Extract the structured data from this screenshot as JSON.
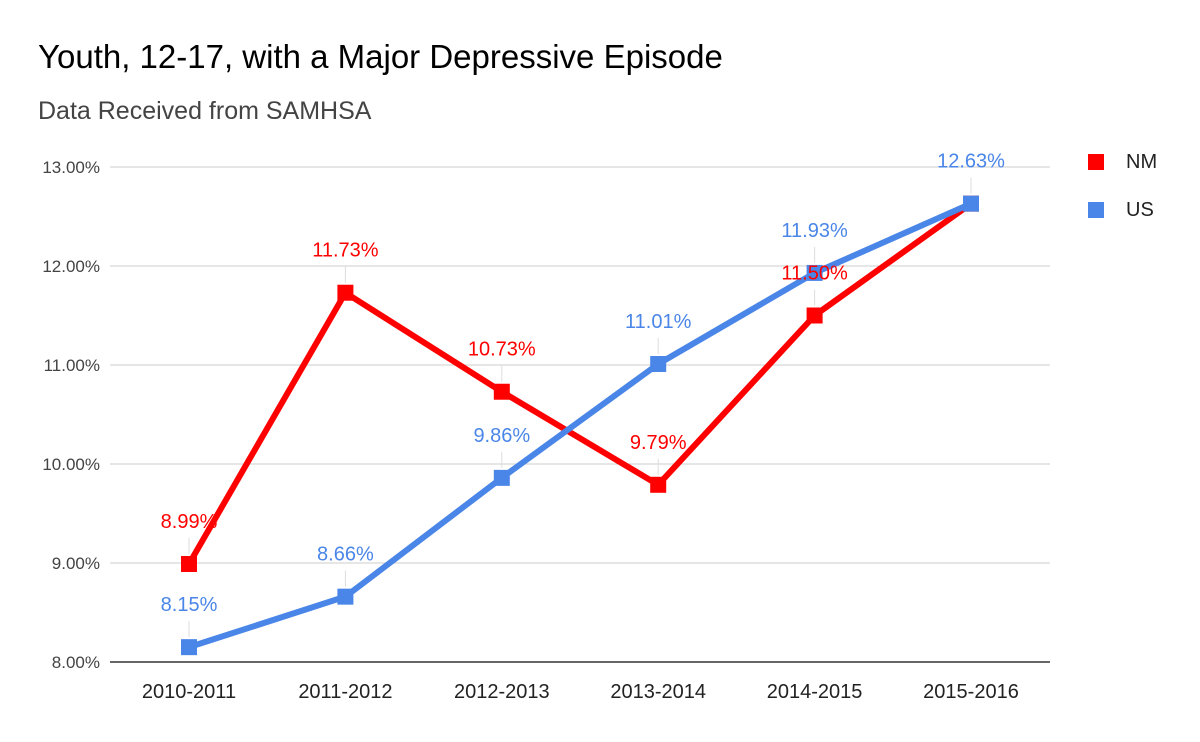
{
  "chart_data": {
    "type": "line",
    "title": "Youth, 12-17, with a Major Depressive Episode",
    "subtitle": "Data Received from SAMHSA",
    "categories": [
      "2010-2011",
      "2011-2012",
      "2012-2013",
      "2013-2014",
      "2014-2015",
      "2015-2016"
    ],
    "y_ticks": [
      "8.00%",
      "9.00%",
      "10.00%",
      "11.00%",
      "12.00%",
      "13.00%"
    ],
    "ylim": [
      8,
      13
    ],
    "grid": true,
    "legend_position": "right",
    "series": [
      {
        "name": "NM",
        "color": "#ff0000",
        "values": [
          8.99,
          11.73,
          10.73,
          9.79,
          11.5,
          12.63
        ],
        "labels": [
          "8.99%",
          "11.73%",
          "10.73%",
          "9.79%",
          "11.50%",
          ""
        ]
      },
      {
        "name": "US",
        "color": "#4a86e8",
        "values": [
          8.15,
          8.66,
          9.86,
          11.01,
          11.93,
          12.63
        ],
        "labels": [
          "8.15%",
          "8.66%",
          "9.86%",
          "11.01%",
          "11.93%",
          "12.63%"
        ]
      }
    ]
  }
}
